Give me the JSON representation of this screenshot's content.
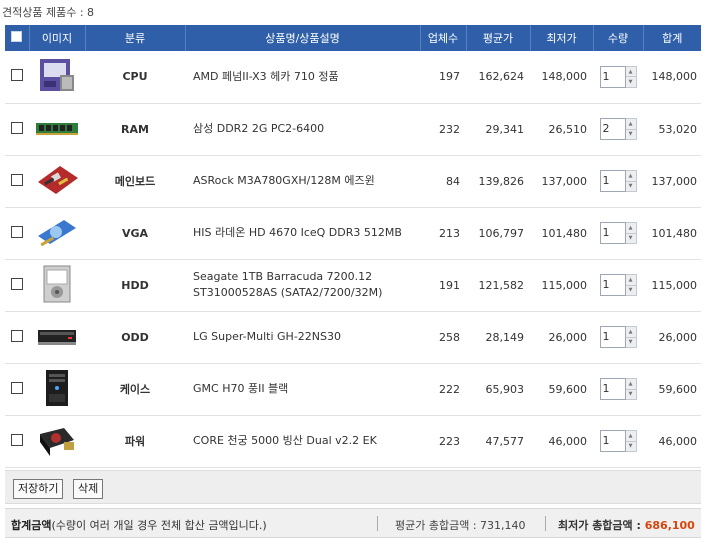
{
  "count_label": "견적상품 제품수 : 8",
  "headers": {
    "image": "이미지",
    "category": "분류",
    "name": "상품명/상품설명",
    "vendors": "업체수",
    "avg_price": "평균가",
    "min_price": "최저가",
    "qty": "수량",
    "total": "합계"
  },
  "rows": [
    {
      "category": "CPU",
      "name": "AMD 페넘II-X3 헤카 710 정품",
      "name2": "",
      "vendors": "197",
      "avg": "162,624",
      "min": "148,000",
      "qty": "1",
      "total": "148,000",
      "icon": "cpu-box-icon"
    },
    {
      "category": "RAM",
      "name": "삼성 DDR2 2G PC2-6400",
      "name2": "",
      "vendors": "232",
      "avg": "29,341",
      "min": "26,510",
      "qty": "2",
      "total": "53,020",
      "icon": "ram-stick-icon"
    },
    {
      "category": "메인보드",
      "name": "ASRock M3A780GXH/128M 에즈윈",
      "name2": "",
      "vendors": "84",
      "avg": "139,826",
      "min": "137,000",
      "qty": "1",
      "total": "137,000",
      "icon": "motherboard-icon"
    },
    {
      "category": "VGA",
      "name": "HIS 라데온 HD 4670 IceQ DDR3 512MB",
      "name2": "",
      "vendors": "213",
      "avg": "106,797",
      "min": "101,480",
      "qty": "1",
      "total": "101,480",
      "icon": "graphics-card-icon"
    },
    {
      "category": "HDD",
      "name": "Seagate 1TB Barracuda 7200.12",
      "name2": "ST31000528AS (SATA2/7200/32M)",
      "vendors": "191",
      "avg": "121,582",
      "min": "115,000",
      "qty": "1",
      "total": "115,000",
      "icon": "hard-drive-icon"
    },
    {
      "category": "ODD",
      "name": "LG Super-Multi GH-22NS30",
      "name2": "",
      "vendors": "258",
      "avg": "28,149",
      "min": "26,000",
      "qty": "1",
      "total": "26,000",
      "icon": "optical-drive-icon"
    },
    {
      "category": "케이스",
      "name": "GMC H70 풍II 블랙",
      "name2": "",
      "vendors": "222",
      "avg": "65,903",
      "min": "59,600",
      "qty": "1",
      "total": "59,600",
      "icon": "pc-case-icon"
    },
    {
      "category": "파워",
      "name": "CORE 천궁 5000 빙산 Dual v2.2 EK",
      "name2": "",
      "vendors": "223",
      "avg": "47,577",
      "min": "46,000",
      "qty": "1",
      "total": "46,000",
      "icon": "power-supply-icon"
    }
  ],
  "buttons": {
    "save": "저장하기",
    "delete": "삭제"
  },
  "summary": {
    "label": "합계금액",
    "note": "(수량이 여러 개일 경우 전체 합산 금액입니다.)",
    "avg_label": "평균가 총합금액 : ",
    "avg_value": "731,140",
    "min_label": "최저가 총합금액 : ",
    "min_value": "686,100"
  },
  "colors": {
    "header_bg": "#2f5fa8",
    "min_price": "#c4800f",
    "min_total": "#d9430c"
  }
}
